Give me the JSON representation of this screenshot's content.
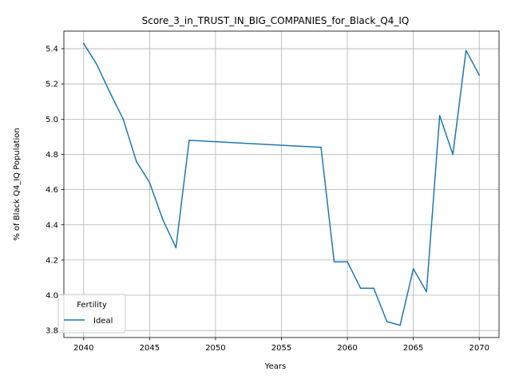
{
  "chart_data": {
    "type": "line",
    "title": "Score_3_in_TRUST_IN_BIG_COMPANIES_for_Black_Q4_IQ",
    "xlabel": "Years",
    "ylabel": "% of Black Q4_IQ Population",
    "xlim": [
      2038.5,
      2071.5
    ],
    "ylim": [
      3.76,
      5.5
    ],
    "grid": true,
    "x_ticks": [
      2040,
      2045,
      2050,
      2055,
      2060,
      2065,
      2070
    ],
    "x_tick_labels": [
      "2040",
      "2045",
      "2050",
      "2055",
      "2060",
      "2065",
      "2070"
    ],
    "y_ticks": [
      3.8,
      4.0,
      4.2,
      4.4,
      4.6,
      4.8,
      5.0,
      5.2,
      5.4
    ],
    "y_tick_labels": [
      "3.8",
      "4.0",
      "4.2",
      "4.4",
      "4.6",
      "4.8",
      "5.0",
      "5.2",
      "5.4"
    ],
    "legend": {
      "title": "Fertility",
      "position": "lower-left"
    },
    "series": [
      {
        "name": "Ideal",
        "color": "#1f77b4",
        "x": [
          2040,
          2041,
          2042,
          2043,
          2044,
          2045,
          2046,
          2047,
          2048,
          2058,
          2059,
          2060,
          2061,
          2062,
          2063,
          2064,
          2065,
          2066,
          2067,
          2068,
          2069,
          2070
        ],
        "y": [
          5.43,
          5.31,
          5.15,
          5.0,
          4.76,
          4.64,
          4.43,
          4.27,
          4.88,
          4.84,
          4.19,
          4.19,
          4.04,
          4.04,
          3.85,
          3.83,
          4.15,
          4.02,
          5.02,
          4.8,
          5.39,
          5.25
        ]
      }
    ]
  }
}
